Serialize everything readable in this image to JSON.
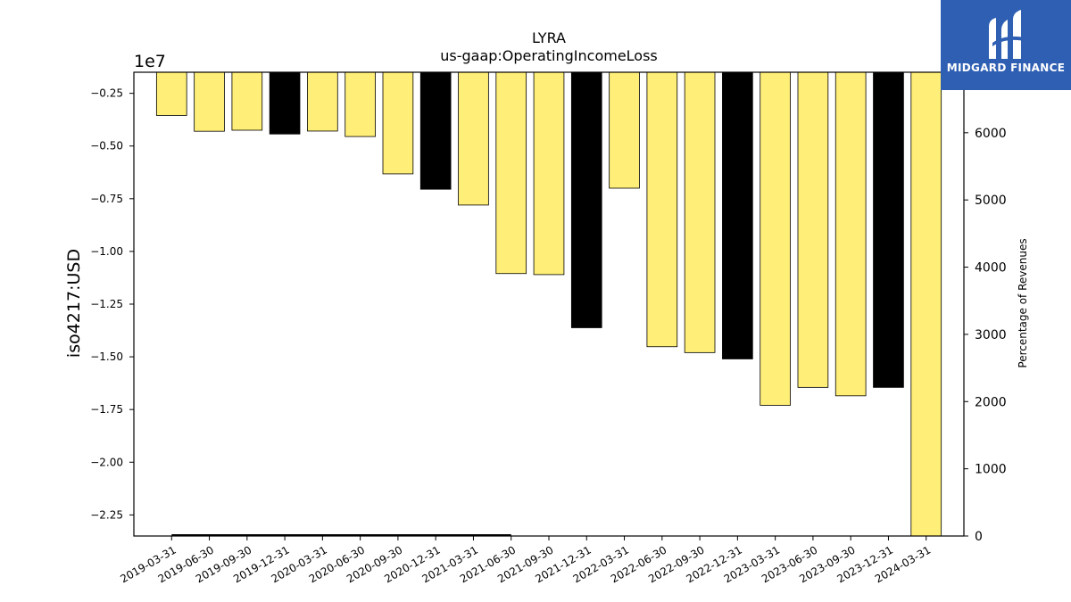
{
  "chart_data": {
    "type": "bar",
    "title": "LYRA",
    "subtitle": "us-gaap:OperatingIncomeLoss",
    "ylabel": "iso4217:USD",
    "y_offset_label": "1e7",
    "y2label": "Percentage of Revenues",
    "ylim": [
      -23500000,
      -1500000
    ],
    "y2lim": [
      0,
      6900
    ],
    "yticks": [
      -2500000,
      -5000000,
      -7500000,
      -10000000,
      -12500000,
      -15000000,
      -17500000,
      -20000000,
      -22500000
    ],
    "ytick_labels": [
      "−0.25",
      "−0.50",
      "−0.75",
      "−1.00",
      "−1.25",
      "−1.50",
      "−1.75",
      "−2.00",
      "−2.25"
    ],
    "y2ticks": [
      0,
      1000,
      2000,
      3000,
      4000,
      5000,
      6000
    ],
    "y2tick_labels": [
      "0",
      "1000",
      "2000",
      "3000",
      "4000",
      "5000",
      "6000"
    ],
    "categories": [
      "2019-03-31",
      "2019-06-30",
      "2019-09-30",
      "2019-12-31",
      "2020-03-31",
      "2020-06-30",
      "2020-09-30",
      "2020-12-31",
      "2021-03-31",
      "2021-06-30",
      "2021-09-30",
      "2021-12-31",
      "2022-03-31",
      "2022-06-30",
      "2022-09-30",
      "2022-12-31",
      "2023-03-31",
      "2023-06-30",
      "2023-09-30",
      "2023-12-31",
      "2024-03-31"
    ],
    "values": [
      -3550000,
      -4300000,
      -4250000,
      -4430000,
      -4290000,
      -4550000,
      -6320000,
      -7050000,
      -7800000,
      -11050000,
      -11100000,
      -13620000,
      -7000000,
      -14520000,
      -14800000,
      -15100000,
      -17300000,
      -16450000,
      -16850000,
      -16450000,
      -23500000
    ],
    "bar_colors": [
      "#ffee77",
      "#ffee77",
      "#ffee77",
      "#000000",
      "#ffee77",
      "#ffee77",
      "#ffee77",
      "#000000",
      "#ffee77",
      "#ffee77",
      "#ffee77",
      "#000000",
      "#ffee77",
      "#ffee77",
      "#ffee77",
      "#000000",
      "#ffee77",
      "#ffee77",
      "#ffee77",
      "#000000",
      "#ffee77"
    ],
    "secondary_line": {
      "axis": "y2",
      "x_range": [
        "2019-03-31",
        "2021-06-30"
      ],
      "value": 0
    },
    "grid": false,
    "legend": "none"
  },
  "brand": {
    "name": "MIDGARD FINANCE",
    "logo_icon": "midgard-logo-icon",
    "color": "#2f5fb3"
  },
  "colors": {
    "annual": "#000000",
    "quarterly": "#ffee77"
  }
}
